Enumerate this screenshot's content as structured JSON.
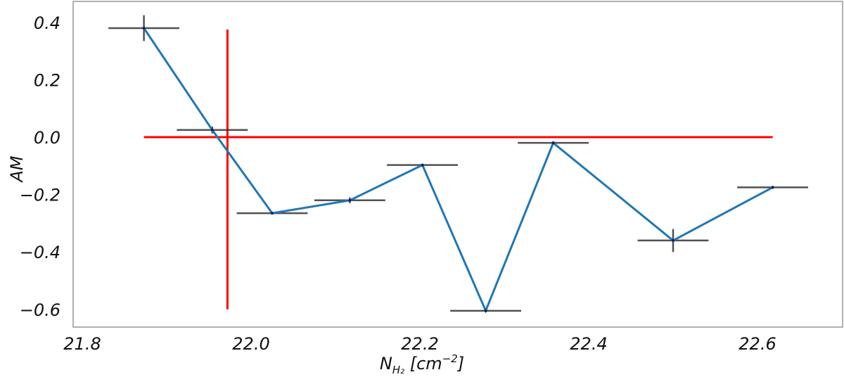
{
  "chart_data": {
    "type": "line",
    "title": "",
    "xlabel": "N_H2 [cm^-2]",
    "xlabel_parts": {
      "main": "N",
      "sub": "H₂",
      "rest": " [cm",
      "sup": "−2",
      "close": "]"
    },
    "ylabel": "AM",
    "xlim": [
      21.79,
      22.7
    ],
    "ylim": [
      -0.64,
      0.46
    ],
    "x_ticks": [
      21.8,
      22.0,
      22.2,
      22.4,
      22.6
    ],
    "x_tick_labels": [
      "21.8",
      "22.0",
      "22.2",
      "22.4",
      "22.6"
    ],
    "y_ticks": [
      0.4,
      0.2,
      0.0,
      -0.2,
      -0.4,
      -0.6
    ],
    "y_tick_labels": [
      "0.4",
      "0.2",
      "0.0",
      "−0.2",
      "−0.4",
      "−0.6"
    ],
    "grid": false,
    "legend": null,
    "series": [
      {
        "name": "AM",
        "color": "#1f77b4",
        "errorbar_color": "#333333",
        "x": [
          21.873,
          21.954,
          22.025,
          22.117,
          22.203,
          22.278,
          22.358,
          22.5,
          22.618
        ],
        "y": [
          0.38,
          0.025,
          -0.265,
          -0.22,
          -0.097,
          -0.605,
          -0.02,
          -0.36,
          -0.175
        ],
        "xerr": [
          0.042,
          0.042,
          0.042,
          0.042,
          0.042,
          0.042,
          0.042,
          0.042,
          0.042
        ],
        "yerr": [
          0.045,
          0.012,
          0.0,
          0.01,
          0.0,
          0.0,
          0.005,
          0.04,
          0.005
        ]
      }
    ],
    "annotations": [
      {
        "type": "hline",
        "y": 0.0,
        "x_from": 21.873,
        "x_to": 22.618,
        "color": "#ff0000"
      },
      {
        "type": "vline",
        "x": 21.972,
        "y_from": -0.6,
        "y_to": 0.375,
        "color": "#ff0000"
      }
    ]
  }
}
